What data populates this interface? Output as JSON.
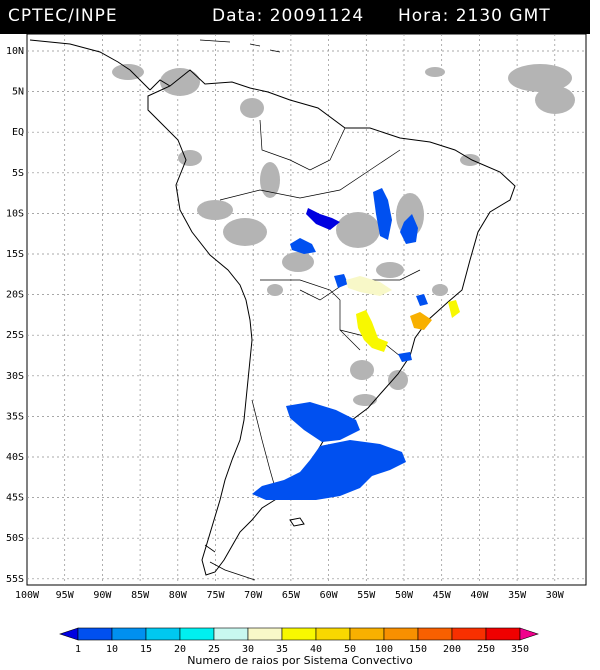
{
  "header": {
    "source": "CPTEC/INPE",
    "data_label": "Data: 20091124",
    "hora_label": "Hora: 2130 GMT"
  },
  "lat_labels": [
    "10N",
    "5N",
    "EQ",
    "5S",
    "10S",
    "15S",
    "20S",
    "25S",
    "30S",
    "35S",
    "40S",
    "45S",
    "50S",
    "55S"
  ],
  "lon_labels": [
    "100W",
    "95W",
    "90W",
    "85W",
    "80W",
    "75W",
    "70W",
    "65W",
    "60W",
    "55W",
    "50W",
    "45W",
    "40W",
    "35W",
    "30W"
  ],
  "colorbar": {
    "ticks": [
      "1",
      "10",
      "15",
      "20",
      "25",
      "30",
      "35",
      "40",
      "50",
      "100",
      "150",
      "200",
      "250",
      "350"
    ],
    "colors": [
      "#0000e0",
      "#0050f0",
      "#0090f0",
      "#00c8f0",
      "#00f0f0",
      "#c8f8f0",
      "#f8f8c8",
      "#f8f800",
      "#f8d800",
      "#f8b000",
      "#f89000",
      "#f86000",
      "#f83000",
      "#f00000",
      "#f0008c"
    ],
    "title": "Numero de raios por Sistema Convectivo"
  },
  "colors": {
    "cloud": "#b4b4b4",
    "land_outline": "#000000",
    "grid": "#8c8c8c",
    "blue": "#0050f0",
    "dark_blue": "#0000e0",
    "yellow": "#f8f800",
    "light_yellow": "#f8f8c8",
    "orange": "#f8b000"
  }
}
